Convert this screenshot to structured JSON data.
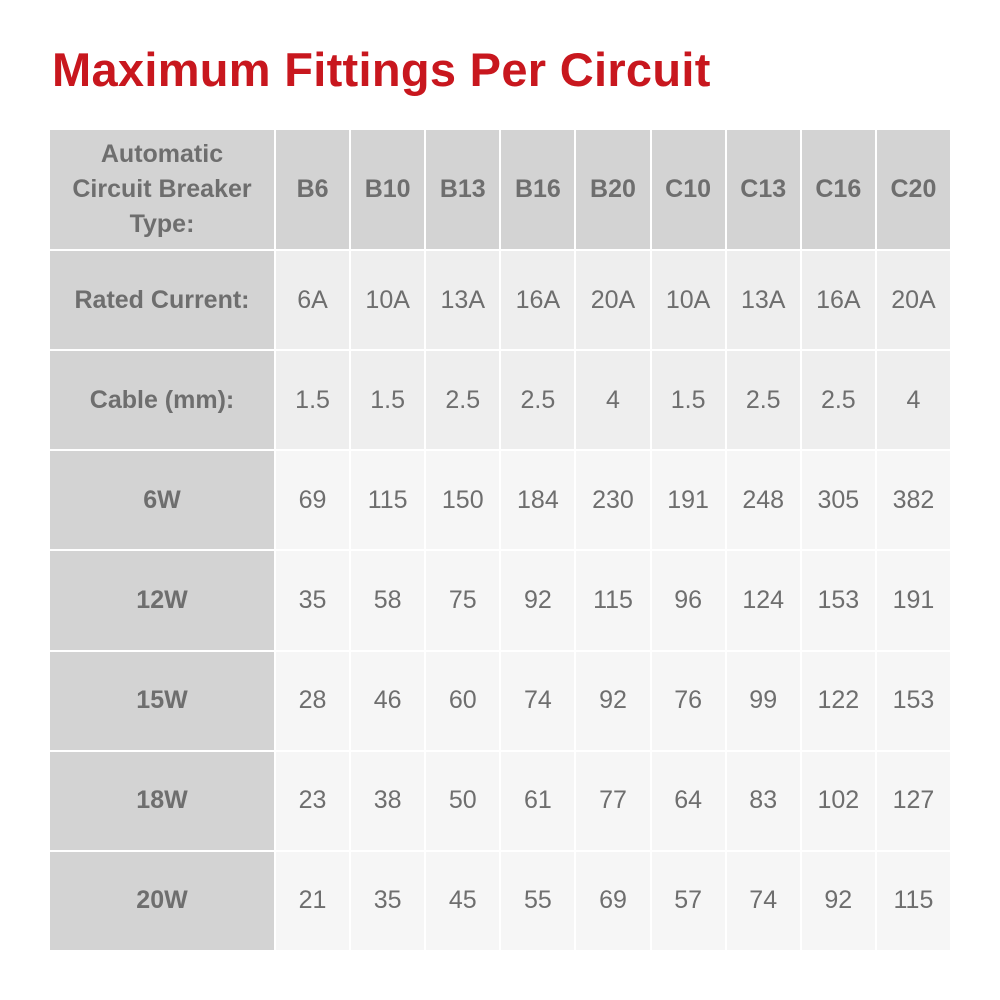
{
  "title": "Maximum Fittings Per Circuit",
  "colors": {
    "title": "#c8171e",
    "header_bg": "#d3d3d3",
    "text": "#6e6e6e",
    "spec_row_bg": "#eeeeee",
    "data_row_bg": "#f6f6f6"
  },
  "table": {
    "corner_label": "Automatic Circuit Breaker Type:",
    "columns": [
      "B6",
      "B10",
      "B13",
      "B16",
      "B20",
      "C10",
      "C13",
      "C16",
      "C20"
    ],
    "rows": [
      {
        "label": "Rated Current:",
        "values": [
          "6A",
          "10A",
          "13A",
          "16A",
          "20A",
          "10A",
          "13A",
          "16A",
          "20A"
        ]
      },
      {
        "label": "Cable (mm):",
        "values": [
          "1.5",
          "1.5",
          "2.5",
          "2.5",
          "4",
          "1.5",
          "2.5",
          "2.5",
          "4"
        ]
      },
      {
        "label": "6W",
        "values": [
          "69",
          "115",
          "150",
          "184",
          "230",
          "191",
          "248",
          "305",
          "382"
        ]
      },
      {
        "label": "12W",
        "values": [
          "35",
          "58",
          "75",
          "92",
          "115",
          "96",
          "124",
          "153",
          "191"
        ]
      },
      {
        "label": "15W",
        "values": [
          "28",
          "46",
          "60",
          "74",
          "92",
          "76",
          "99",
          "122",
          "153"
        ]
      },
      {
        "label": "18W",
        "values": [
          "23",
          "38",
          "50",
          "61",
          "77",
          "64",
          "83",
          "102",
          "127"
        ]
      },
      {
        "label": "20W",
        "values": [
          "21",
          "35",
          "45",
          "55",
          "69",
          "57",
          "74",
          "92",
          "115"
        ]
      }
    ]
  }
}
